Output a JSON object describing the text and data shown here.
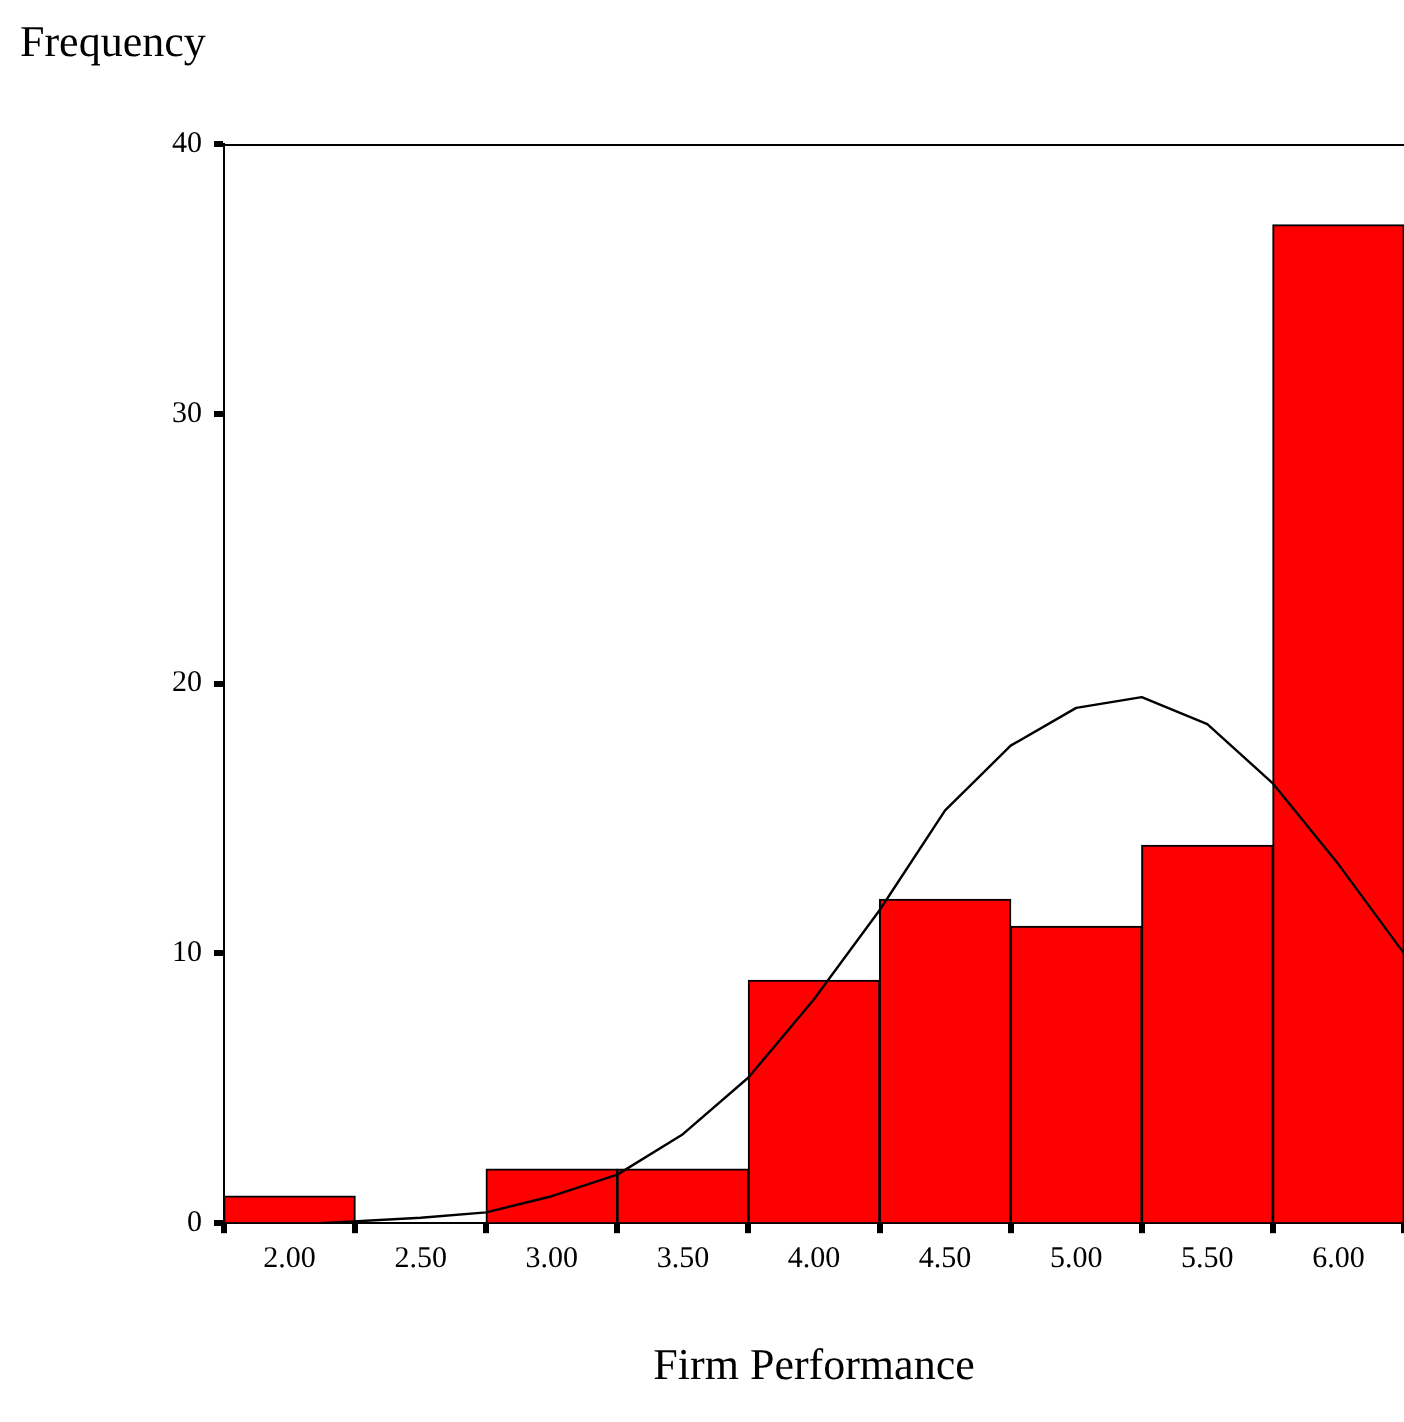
{
  "chart_data": {
    "type": "histogram",
    "ylabel": "Frequency",
    "xlabel": "Firm Performance",
    "bins": [
      1.75,
      2.25,
      2.75,
      3.25,
      3.75,
      4.25,
      4.75,
      5.25,
      5.75,
      6.25
    ],
    "values": [
      1,
      0,
      2,
      2,
      9,
      12,
      11,
      14,
      37
    ],
    "color": "#ff0000",
    "series": [
      {
        "type": "line",
        "color": "#000000",
        "x": [
          2.12,
          2.5,
          2.75,
          3.0,
          3.25,
          3.5,
          3.75,
          4.0,
          4.25,
          4.5,
          4.75,
          5.0,
          5.25,
          5.5,
          5.75,
          6.0,
          6.25
        ],
        "values": [
          0,
          0.2,
          0.4,
          1.0,
          1.8,
          3.3,
          5.4,
          8.3,
          11.6,
          15.3,
          17.7,
          19.1,
          19.5,
          18.5,
          16.3,
          13.3,
          10
        ]
      }
    ],
    "xlim": [
      1.75,
      6.25
    ],
    "xticks": [
      {
        "value": 2,
        "label": "2.00"
      },
      {
        "value": 2.5,
        "label": "2.50"
      },
      {
        "value": 3,
        "label": "3.00"
      },
      {
        "value": 3.5,
        "label": "3.50"
      },
      {
        "value": 4,
        "label": "4.00"
      },
      {
        "value": 4.5,
        "label": "4.50"
      },
      {
        "value": 5,
        "label": "5.00"
      },
      {
        "value": 5.5,
        "label": "5.50"
      },
      {
        "value": 6,
        "label": "6.00"
      }
    ],
    "ylim": [
      0,
      40
    ],
    "yticks": [
      0,
      10,
      20,
      30,
      40
    ],
    "grid": false,
    "legend": false,
    "marker": "none",
    "line_style": "solid"
  }
}
